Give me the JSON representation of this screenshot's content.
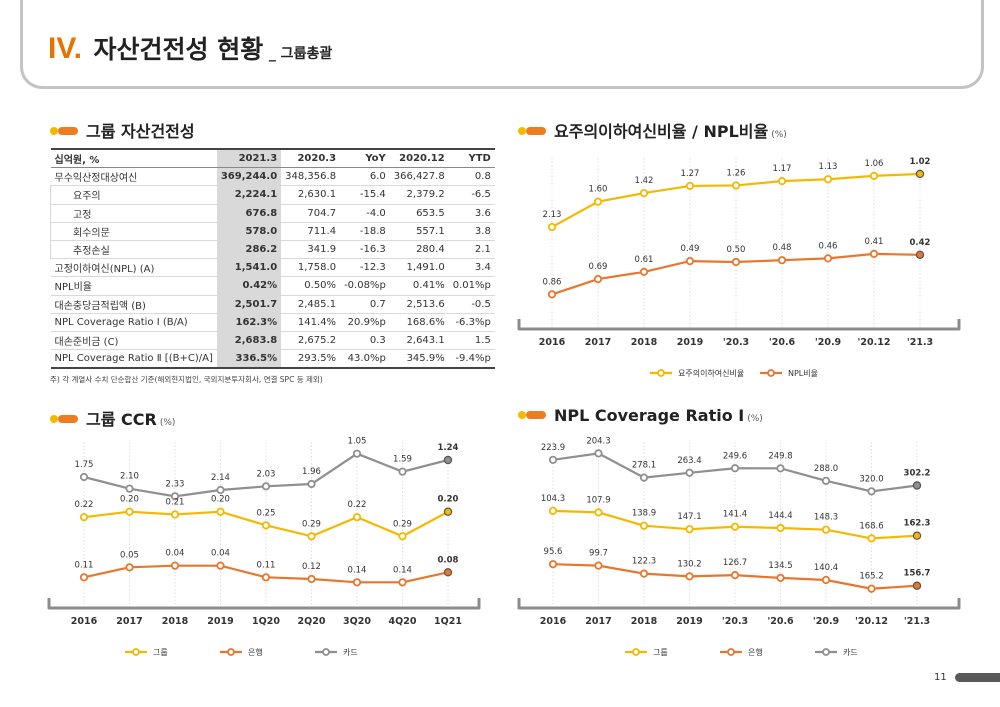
{
  "header": {
    "roman": "IV.",
    "title": "자산건전성 현황",
    "subtitle": "_ 그룹총괄"
  },
  "page_number": "11",
  "sections": {
    "asset": {
      "title": "그룹 자산건전성"
    },
    "npl": {
      "title": "요주의이하여신비율 / NPL비율",
      "unit": "(%)"
    },
    "ccr": {
      "title": "그룹 CCR",
      "unit": "(%)"
    },
    "cov": {
      "title": "NPL Coverage Ratio Ⅰ",
      "unit": "(%)"
    }
  },
  "table": {
    "headers": [
      "십억원, %",
      "2021.3",
      "2020.3",
      "YoY",
      "2020.12",
      "YTD"
    ],
    "rows": [
      {
        "label": "무수익산정대상여신",
        "indent": false,
        "cells": [
          "369,244.0",
          "348,356.8",
          "6.0",
          "366,427.8",
          "0.8"
        ]
      },
      {
        "label": "요주의",
        "indent": true,
        "cells": [
          "2,224.1",
          "2,630.1",
          "-15.4",
          "2,379.2",
          "-6.5"
        ]
      },
      {
        "label": "고정",
        "indent": true,
        "cells": [
          "676.8",
          "704.7",
          "-4.0",
          "653.5",
          "3.6"
        ]
      },
      {
        "label": "회수의문",
        "indent": true,
        "cells": [
          "578.0",
          "711.4",
          "-18.8",
          "557.1",
          "3.8"
        ]
      },
      {
        "label": "추정손실",
        "indent": true,
        "cells": [
          "286.2",
          "341.9",
          "-16.3",
          "280.4",
          "2.1"
        ]
      },
      {
        "label": "고정이하여신(NPL) (A)",
        "indent": false,
        "cells": [
          "1,541.0",
          "1,758.0",
          "-12.3",
          "1,491.0",
          "3.4"
        ]
      },
      {
        "label": "NPL비율",
        "indent": false,
        "cells": [
          "0.42%",
          "0.50%",
          "-0.08%p",
          "0.41%",
          "0.01%p"
        ]
      },
      {
        "label": "대손충당금적립액 (B)",
        "indent": false,
        "cells": [
          "2,501.7",
          "2,485.1",
          "0.7",
          "2,513.6",
          "-0.5"
        ]
      },
      {
        "label": "NPL Coverage Ratio Ⅰ (B/A)",
        "indent": false,
        "cells": [
          "162.3%",
          "141.4%",
          "20.9%p",
          "168.6%",
          "-6.3%p"
        ]
      },
      {
        "label": "대손준비금 (C)",
        "indent": false,
        "cells": [
          "2,683.8",
          "2,675.2",
          "0.3",
          "2,643.1",
          "1.5"
        ]
      },
      {
        "label": "NPL Coverage Ratio Ⅱ [(B+C)/A]",
        "indent": false,
        "cells": [
          "336.5%",
          "293.5%",
          "43.0%p",
          "345.9%",
          "-9.4%p"
        ]
      }
    ],
    "note": "주) 각 계열사 수치 단순합산 기준(해외현지법인, 국외지분투자회사, 연결 SPC 등 제외)"
  },
  "colors": {
    "yellow": "#f5b800",
    "orange": "#e8762d",
    "gray": "#8f8f8f",
    "accent": "#ee7d22"
  },
  "chart_data": [
    {
      "id": "npl",
      "type": "line",
      "categories": [
        "2016",
        "2017",
        "2018",
        "2019",
        "'20.3",
        "'20.6",
        "'20.9",
        "'20.12",
        "'21.3"
      ],
      "series": [
        {
          "name": "요주의이하여신비율",
          "color": "#f5b800",
          "values": [
            2.13,
            1.6,
            1.42,
            1.27,
            1.26,
            1.17,
            1.13,
            1.06,
            1.02
          ],
          "labels": [
            "2.13",
            "1.60",
            "1.42",
            "1.27",
            "1.26",
            "1.17",
            "1.13",
            "1.06",
            "1.02"
          ]
        },
        {
          "name": "NPL비율",
          "color": "#e8762d",
          "values": [
            0.86,
            0.69,
            0.61,
            0.49,
            0.5,
            0.48,
            0.46,
            0.41,
            0.42
          ],
          "labels": [
            "0.86",
            "0.69",
            "0.61",
            "0.49",
            "0.50",
            "0.48",
            "0.46",
            "0.41",
            "0.42"
          ]
        }
      ],
      "ylim": [
        0.2,
        2.4
      ]
    },
    {
      "id": "ccr",
      "type": "line",
      "categories": [
        "2016",
        "2017",
        "2018",
        "2019",
        "1Q20",
        "2Q20",
        "3Q20",
        "4Q20",
        "1Q21"
      ],
      "series": [
        {
          "name": "카드",
          "color": "#8f8f8f",
          "values": [
            1.75,
            2.1,
            2.33,
            2.14,
            2.03,
            1.96,
            1.05,
            1.59,
            1.24
          ],
          "labels": [
            "1.75",
            "2.10",
            "2.33",
            "2.14",
            "2.03",
            "1.96",
            "1.05",
            "1.59",
            "1.24"
          ]
        },
        {
          "name": "그룹",
          "color": "#f5b800",
          "values": [
            0.22,
            0.2,
            0.21,
            0.2,
            0.25,
            0.29,
            0.22,
            0.29,
            0.2
          ],
          "labels": [
            "0.22",
            "0.20",
            "0.21",
            "0.20",
            "0.25",
            "0.29",
            "0.22",
            "0.29",
            "0.20"
          ]
        },
        {
          "name": "은행",
          "color": "#e8762d",
          "values": [
            0.11,
            0.05,
            0.04,
            0.04,
            0.11,
            0.12,
            0.14,
            0.14,
            0.08
          ],
          "labels": [
            "0.11",
            "0.05",
            "0.04",
            "0.04",
            "0.11",
            "0.12",
            "0.14",
            "0.14",
            "0.08"
          ]
        }
      ]
    },
    {
      "id": "cov",
      "type": "line",
      "categories": [
        "2016",
        "2017",
        "2018",
        "2019",
        "'20.3",
        "'20.6",
        "'20.9",
        "'20.12",
        "'21.3"
      ],
      "series": [
        {
          "name": "카드",
          "color": "#8f8f8f",
          "values": [
            223.9,
            204.3,
            278.1,
            263.4,
            249.6,
            249.8,
            288.0,
            320.0,
            302.2
          ],
          "labels": [
            "223.9",
            "204.3",
            "278.1",
            "263.4",
            "249.6",
            "249.8",
            "288.0",
            "320.0",
            "302.2"
          ]
        },
        {
          "name": "그룹",
          "color": "#f5b800",
          "values": [
            104.3,
            107.9,
            138.9,
            147.1,
            141.4,
            144.4,
            148.3,
            168.6,
            162.3
          ],
          "labels": [
            "104.3",
            "107.9",
            "138.9",
            "147.1",
            "141.4",
            "144.4",
            "148.3",
            "168.6",
            "162.3"
          ]
        },
        {
          "name": "은행",
          "color": "#e8762d",
          "values": [
            95.6,
            99.7,
            122.3,
            130.2,
            126.7,
            134.5,
            140.4,
            165.2,
            156.7
          ],
          "labels": [
            "95.6",
            "99.7",
            "122.3",
            "130.2",
            "126.7",
            "134.5",
            "140.4",
            "165.2",
            "156.7"
          ]
        }
      ]
    }
  ],
  "legends": {
    "npl": [
      "요주의이하여신비율",
      "NPL비율"
    ],
    "ccr": [
      "그룹",
      "은행",
      "카드"
    ],
    "cov": [
      "그룹",
      "은행",
      "카드"
    ]
  }
}
